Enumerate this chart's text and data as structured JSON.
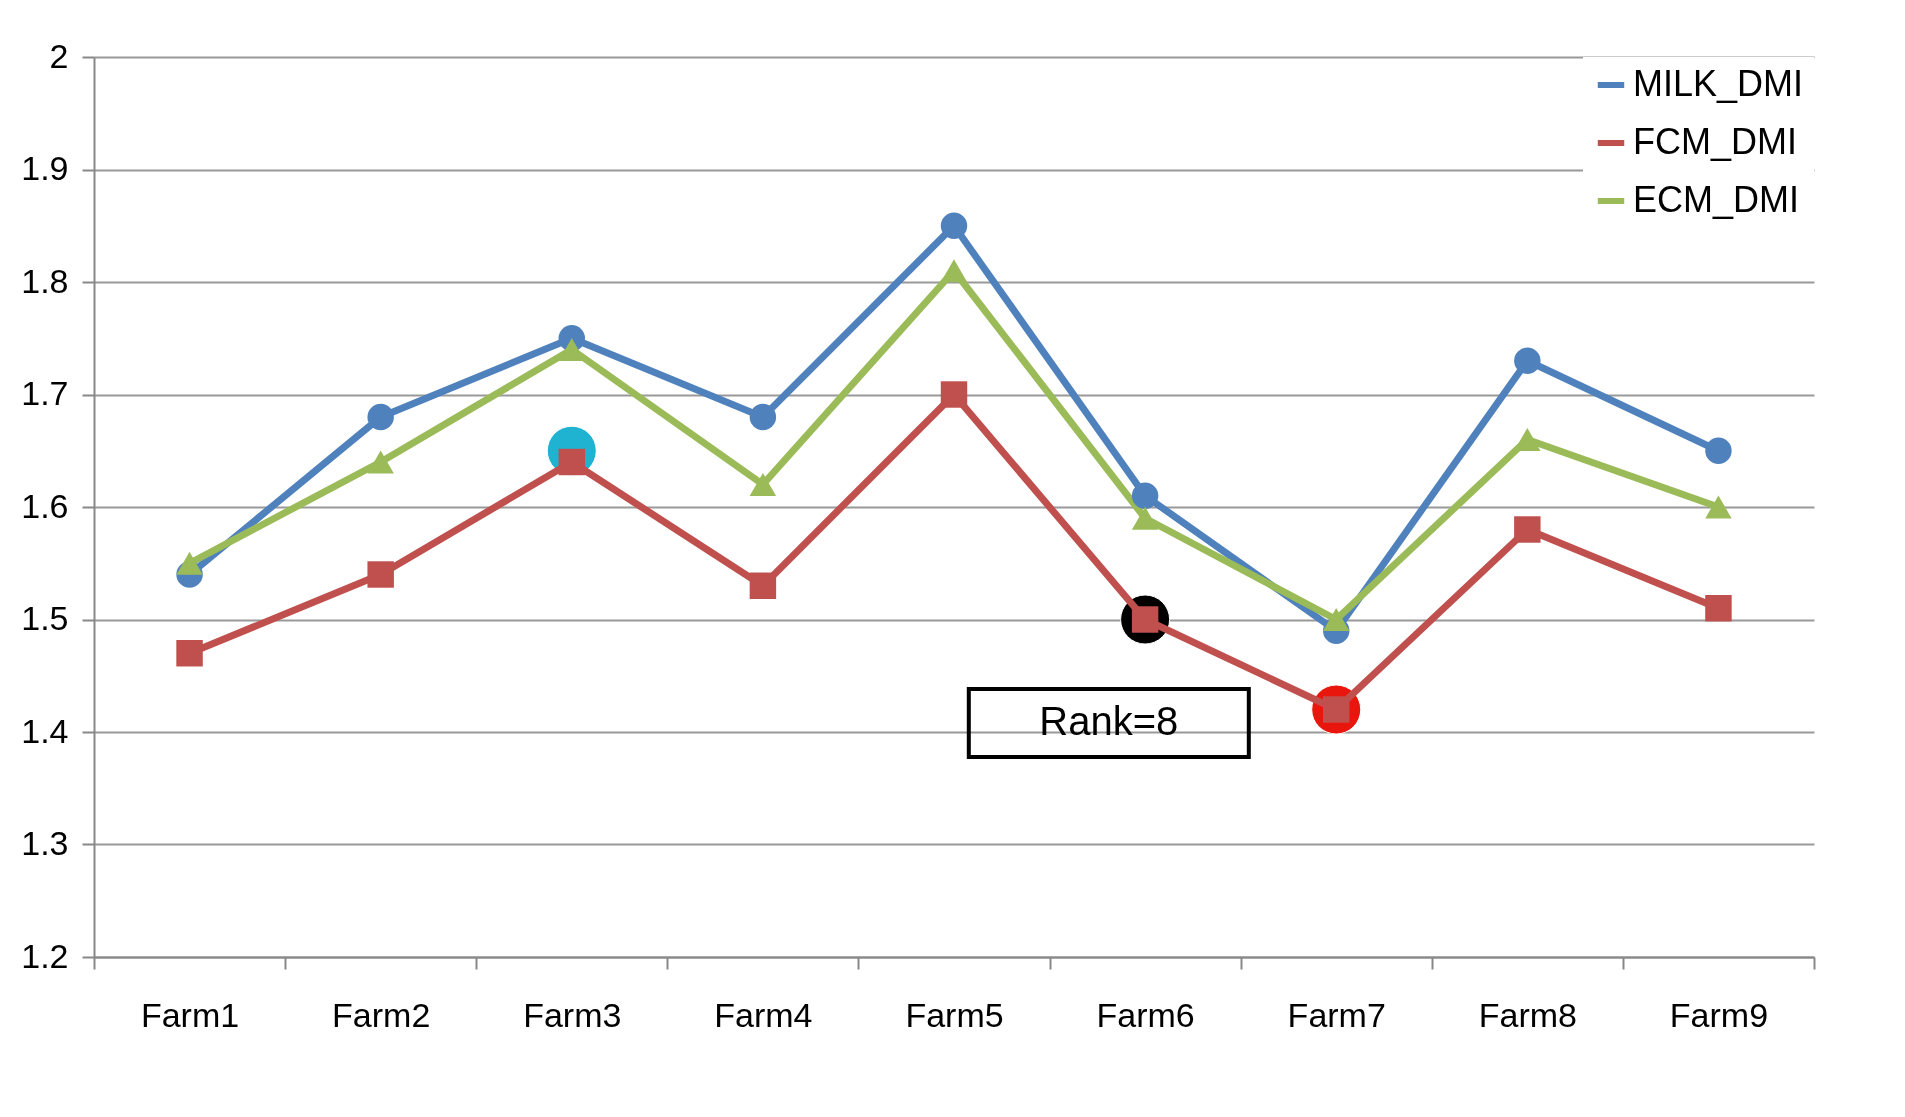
{
  "chart_data": {
    "type": "line",
    "categories": [
      "Farm1",
      "Farm2",
      "Farm3",
      "Farm4",
      "Farm5",
      "Farm6",
      "Farm7",
      "Farm8",
      "Farm9"
    ],
    "series": [
      {
        "name": "MILK_DMI",
        "color": "#4f81bd",
        "marker": "circle",
        "values": [
          1.54,
          1.68,
          1.75,
          1.68,
          1.85,
          1.61,
          1.49,
          1.73,
          1.65
        ]
      },
      {
        "name": "FCM_DMI",
        "color": "#c0504d",
        "marker": "square",
        "values": [
          1.47,
          1.54,
          1.64,
          1.53,
          1.7,
          1.5,
          1.42,
          1.58,
          1.51
        ]
      },
      {
        "name": "ECM_DMI",
        "color": "#9bbb59",
        "marker": "triangle",
        "values": [
          1.55,
          1.64,
          1.74,
          1.62,
          1.81,
          1.59,
          1.5,
          1.66,
          1.6
        ]
      },
      {
        "type": "scatter",
        "marker": "circle",
        "x": [
          "Farm3",
          "Farm6",
          "Farm7"
        ],
        "values": [
          1.65,
          1.5,
          1.42
        ],
        "colors": [
          "#1fb3d1",
          "#000000",
          "#e8160c"
        ]
      }
    ],
    "annotations": [
      "Rank=8"
    ],
    "ylim": [
      1.2,
      2
    ],
    "yticks": [
      1.2,
      1.3,
      1.4,
      1.5,
      1.6,
      1.7,
      1.8,
      1.9,
      2
    ],
    "grid": "y",
    "legend": "top right"
  }
}
